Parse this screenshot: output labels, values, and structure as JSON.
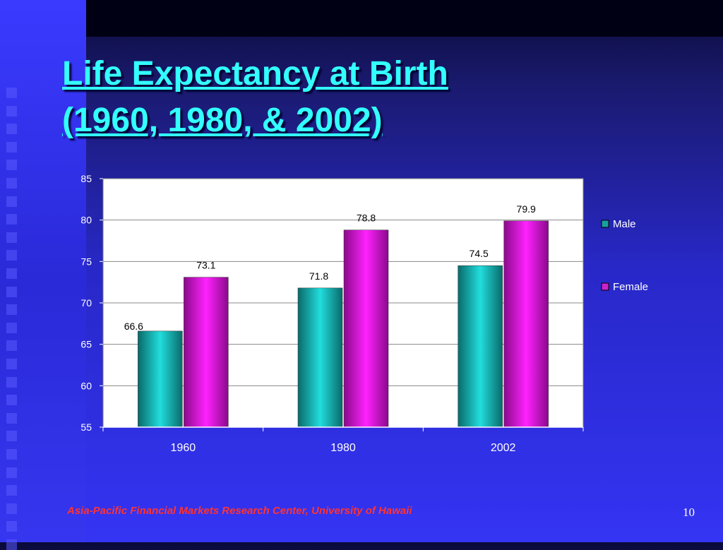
{
  "slide": {
    "title_line1": "Life Expectancy at Birth",
    "title_line2": "(1960, 1980, & 2002)",
    "footer": "Asia-Pacific Financial Markets Research Center, University of Hawaii",
    "page_number": "10"
  },
  "colors": {
    "title": "#33ffff",
    "male": "#1aa0a0",
    "female": "#cc22cc",
    "footer": "#ff3333"
  },
  "chart_data": {
    "type": "bar",
    "categories": [
      "1960",
      "1980",
      "2002"
    ],
    "series": [
      {
        "name": "Male",
        "values": [
          66.6,
          71.8,
          74.5
        ],
        "labels": [
          "66.6",
          "71.8",
          "74.5"
        ]
      },
      {
        "name": "Female",
        "values": [
          73.1,
          78.8,
          79.9
        ],
        "labels": [
          "73.1",
          "78.8",
          "79.9"
        ]
      }
    ],
    "ylim": [
      55,
      85
    ],
    "yticks": [
      "55",
      "60",
      "65",
      "70",
      "75",
      "80",
      "85"
    ],
    "grid": true,
    "legend": "right"
  }
}
